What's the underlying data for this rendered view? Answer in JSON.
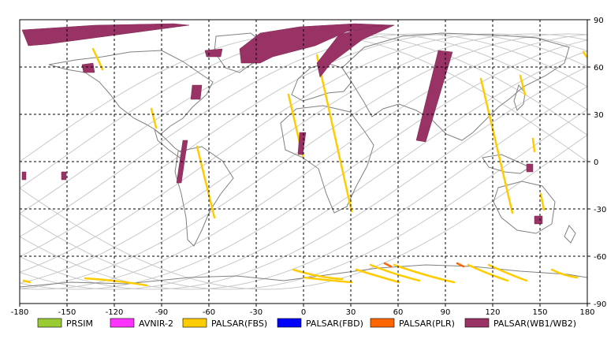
{
  "map": {
    "x_ticks": [
      "-180",
      "-150",
      "-120",
      "-90",
      "-60",
      "-30",
      "0",
      "30",
      "60",
      "90",
      "120",
      "150",
      "180"
    ],
    "y_ticks": [
      "90",
      "60",
      "30",
      "0",
      "-30",
      "-60",
      "-90"
    ],
    "lon_range": [
      -180,
      180
    ],
    "lat_range": [
      -90,
      90
    ],
    "grid": "dashed"
  },
  "legend": [
    {
      "label": "PRSIM",
      "color": "#99cc33"
    },
    {
      "label": "AVNIR-2",
      "color": "#ff33ff"
    },
    {
      "label": "PALSAR(FBS)",
      "color": "#ffcc00"
    },
    {
      "label": "PALSAR(FBD)",
      "color": "#0000ff"
    },
    {
      "label": "PALSAR(PLR)",
      "color": "#ff6600"
    },
    {
      "label": "PALSAR(WB1/WB2)",
      "color": "#993366"
    }
  ],
  "colors": {
    "land": "#808080",
    "orbit": "#c8c8c8",
    "grid": "#000000"
  }
}
